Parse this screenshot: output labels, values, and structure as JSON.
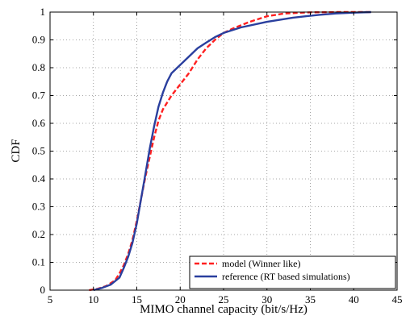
{
  "chart_data": {
    "type": "line",
    "title": "",
    "xlabel": "MIMO channel capacity (bit/s/Hz)",
    "ylabel": "CDF",
    "xlim": [
      5,
      45
    ],
    "ylim": [
      0,
      1
    ],
    "xticks": [
      5,
      10,
      15,
      20,
      25,
      30,
      35,
      40,
      45
    ],
    "yticks": [
      0,
      0.1,
      0.2,
      0.3,
      0.4,
      0.5,
      0.6,
      0.7,
      0.8,
      0.9,
      1
    ],
    "xtick_labels": [
      "5",
      "10",
      "15",
      "20",
      "25",
      "30",
      "35",
      "40",
      "45"
    ],
    "ytick_labels": [
      "0",
      "0.1",
      "0.2",
      "0.3",
      "0.4",
      "0.5",
      "0.6",
      "0.7",
      "0.8",
      "0.9",
      "1"
    ],
    "grid": true,
    "legend_position": "bottom-right",
    "series": [
      {
        "name": "model (Winner like)",
        "color": "#ff2020",
        "style": "dashed",
        "x": [
          9.5,
          10.5,
          11.5,
          12.5,
          13.0,
          13.5,
          14.0,
          14.5,
          15.0,
          15.5,
          16.0,
          16.5,
          17.0,
          17.5,
          18.0,
          19.0,
          20.0,
          21.0,
          22.0,
          23.0,
          24.0,
          25.0,
          26.0,
          28.0,
          30.0,
          32.0,
          35.0,
          38.0,
          42.0
        ],
        "y": [
          0.0,
          0.005,
          0.015,
          0.035,
          0.06,
          0.09,
          0.13,
          0.18,
          0.25,
          0.33,
          0.41,
          0.48,
          0.55,
          0.61,
          0.65,
          0.7,
          0.74,
          0.78,
          0.83,
          0.87,
          0.9,
          0.925,
          0.94,
          0.965,
          0.985,
          0.995,
          0.999,
          1.0,
          1.0
        ]
      },
      {
        "name": "reference (RT based simulations)",
        "color": "#2a3f9e",
        "style": "solid",
        "x": [
          10.0,
          11.0,
          12.0,
          13.0,
          13.5,
          14.0,
          14.5,
          15.0,
          15.5,
          16.0,
          16.5,
          17.0,
          17.5,
          18.0,
          18.5,
          19.0,
          20.0,
          21.0,
          22.0,
          23.0,
          24.0,
          25.0,
          27.0,
          30.0,
          33.0,
          36.0,
          38.0,
          40.0,
          42.0
        ],
        "y": [
          0.0,
          0.008,
          0.02,
          0.045,
          0.08,
          0.12,
          0.17,
          0.24,
          0.33,
          0.42,
          0.51,
          0.59,
          0.66,
          0.71,
          0.75,
          0.78,
          0.81,
          0.84,
          0.87,
          0.89,
          0.91,
          0.925,
          0.945,
          0.965,
          0.98,
          0.99,
          0.995,
          0.998,
          1.0
        ]
      }
    ]
  }
}
